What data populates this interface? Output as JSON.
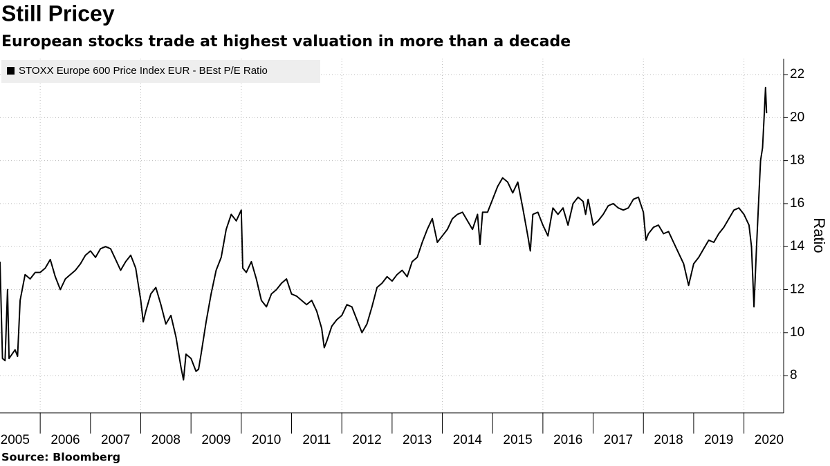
{
  "chart_data": {
    "type": "line",
    "title": "Still Pricey",
    "subtitle": "European stocks trade at highest valuation in more than a decade",
    "y_label": "Ratio",
    "source": "Source: Bloomberg",
    "x": [
      2005.2,
      2005.25,
      2005.3,
      2005.35,
      2005.38,
      2005.5,
      2005.55,
      2005.6,
      2005.7,
      2005.8,
      2005.9,
      2006.0,
      2006.1,
      2006.2,
      2006.3,
      2006.4,
      2006.5,
      2006.6,
      2006.7,
      2006.8,
      2006.9,
      2007.0,
      2007.1,
      2007.2,
      2007.3,
      2007.4,
      2007.5,
      2007.6,
      2007.7,
      2007.8,
      2007.9,
      2008.0,
      2008.05,
      2008.1,
      2008.2,
      2008.3,
      2008.4,
      2008.5,
      2008.6,
      2008.7,
      2008.8,
      2008.85,
      2008.9,
      2009.0,
      2009.1,
      2009.15,
      2009.2,
      2009.3,
      2009.4,
      2009.5,
      2009.6,
      2009.7,
      2009.8,
      2009.9,
      2010.0,
      2010.03,
      2010.1,
      2010.2,
      2010.3,
      2010.4,
      2010.5,
      2010.6,
      2010.7,
      2010.8,
      2010.9,
      2011.0,
      2011.1,
      2011.2,
      2011.3,
      2011.4,
      2011.5,
      2011.6,
      2011.65,
      2011.7,
      2011.8,
      2011.9,
      2012.0,
      2012.1,
      2012.2,
      2012.3,
      2012.4,
      2012.5,
      2012.6,
      2012.7,
      2012.8,
      2012.9,
      2013.0,
      2013.1,
      2013.2,
      2013.3,
      2013.4,
      2013.5,
      2013.6,
      2013.7,
      2013.8,
      2013.9,
      2014.0,
      2014.1,
      2014.2,
      2014.3,
      2014.4,
      2014.5,
      2014.6,
      2014.7,
      2014.75,
      2014.8,
      2014.9,
      2015.0,
      2015.1,
      2015.2,
      2015.3,
      2015.4,
      2015.5,
      2015.6,
      2015.7,
      2015.75,
      2015.8,
      2015.9,
      2016.0,
      2016.1,
      2016.2,
      2016.3,
      2016.4,
      2016.5,
      2016.6,
      2016.7,
      2016.8,
      2016.85,
      2016.9,
      2017.0,
      2017.1,
      2017.2,
      2017.3,
      2017.4,
      2017.5,
      2017.6,
      2017.7,
      2017.8,
      2017.9,
      2018.0,
      2018.05,
      2018.1,
      2018.2,
      2018.3,
      2018.4,
      2018.5,
      2018.6,
      2018.7,
      2018.8,
      2018.9,
      2019.0,
      2019.1,
      2019.2,
      2019.3,
      2019.4,
      2019.5,
      2019.6,
      2019.7,
      2019.8,
      2019.9,
      2020.0,
      2020.1,
      2020.15,
      2020.2,
      2020.25,
      2020.3,
      2020.33,
      2020.37,
      2020.4,
      2020.43,
      2020.45
    ],
    "series": [
      {
        "name": "STOXX Europe 600 Price Index EUR - BEst P/E Ratio",
        "color": "#000000",
        "values": [
          13.3,
          8.8,
          8.7,
          12.0,
          8.8,
          9.2,
          8.9,
          11.5,
          12.7,
          12.5,
          12.8,
          12.8,
          13.0,
          13.4,
          12.6,
          12.0,
          12.5,
          12.7,
          12.9,
          13.2,
          13.6,
          13.8,
          13.5,
          13.9,
          14.0,
          13.9,
          13.4,
          12.9,
          13.3,
          13.6,
          13.0,
          11.5,
          10.5,
          11.0,
          11.8,
          12.1,
          11.3,
          10.4,
          10.8,
          9.8,
          8.4,
          7.8,
          9.0,
          8.8,
          8.2,
          8.3,
          9.0,
          10.5,
          11.8,
          12.9,
          13.5,
          14.8,
          15.5,
          15.2,
          15.7,
          13.0,
          12.8,
          13.3,
          12.5,
          11.5,
          11.2,
          11.8,
          12.0,
          12.3,
          12.5,
          11.8,
          11.7,
          11.5,
          11.3,
          11.5,
          11.0,
          10.2,
          9.3,
          9.6,
          10.3,
          10.6,
          10.8,
          11.3,
          11.2,
          10.6,
          10.0,
          10.4,
          11.2,
          12.1,
          12.3,
          12.6,
          12.4,
          12.7,
          12.9,
          12.6,
          13.3,
          13.5,
          14.2,
          14.8,
          15.3,
          14.2,
          14.5,
          14.8,
          15.3,
          15.5,
          15.6,
          15.2,
          14.8,
          15.5,
          14.1,
          15.6,
          15.6,
          16.2,
          16.8,
          17.2,
          17.0,
          16.5,
          17.0,
          15.8,
          14.5,
          13.8,
          15.5,
          15.6,
          15.0,
          14.5,
          15.8,
          15.5,
          15.8,
          15.0,
          16.0,
          16.3,
          16.1,
          15.5,
          16.2,
          15.0,
          15.2,
          15.5,
          15.9,
          16.0,
          15.8,
          15.7,
          15.8,
          16.2,
          16.3,
          15.6,
          14.3,
          14.6,
          14.9,
          15.0,
          14.6,
          14.7,
          14.2,
          13.7,
          13.2,
          12.2,
          13.2,
          13.5,
          13.9,
          14.3,
          14.2,
          14.6,
          14.9,
          15.3,
          15.7,
          15.8,
          15.5,
          15.0,
          14.0,
          11.2,
          14.0,
          16.5,
          18.0,
          18.6,
          20.0,
          21.4,
          20.2
        ]
      }
    ],
    "xlim": [
      2005.2,
      2020.79
    ],
    "ylim": [
      6.27,
      22.74
    ],
    "yticks": [
      8,
      10,
      12,
      14,
      16,
      18,
      20,
      22
    ],
    "xticks": [
      {
        "value": 2005.5,
        "label": "2005"
      },
      {
        "value": 2006.5,
        "label": "2006"
      },
      {
        "value": 2007.5,
        "label": "2007"
      },
      {
        "value": 2008.5,
        "label": "2008"
      },
      {
        "value": 2009.5,
        "label": "2009"
      },
      {
        "value": 2010.5,
        "label": "2010"
      },
      {
        "value": 2011.5,
        "label": "2011"
      },
      {
        "value": 2012.5,
        "label": "2012"
      },
      {
        "value": 2013.5,
        "label": "2013"
      },
      {
        "value": 2014.5,
        "label": "2014"
      },
      {
        "value": 2015.5,
        "label": "2015"
      },
      {
        "value": 2016.5,
        "label": "2016"
      },
      {
        "value": 2017.5,
        "label": "2017"
      },
      {
        "value": 2018.5,
        "label": "2018"
      },
      {
        "value": 2019.5,
        "label": "2019"
      },
      {
        "value": 2020.5,
        "label": "2020"
      }
    ],
    "xtick_marks": [
      2006,
      2007,
      2008,
      2009,
      2010,
      2011,
      2012,
      2013,
      2014,
      2015,
      2016,
      2017,
      2018,
      2019,
      2020
    ],
    "xgrid": [
      2006,
      2008,
      2010,
      2012,
      2014,
      2016,
      2018,
      2020
    ],
    "grid": true,
    "legend": "top-left"
  }
}
